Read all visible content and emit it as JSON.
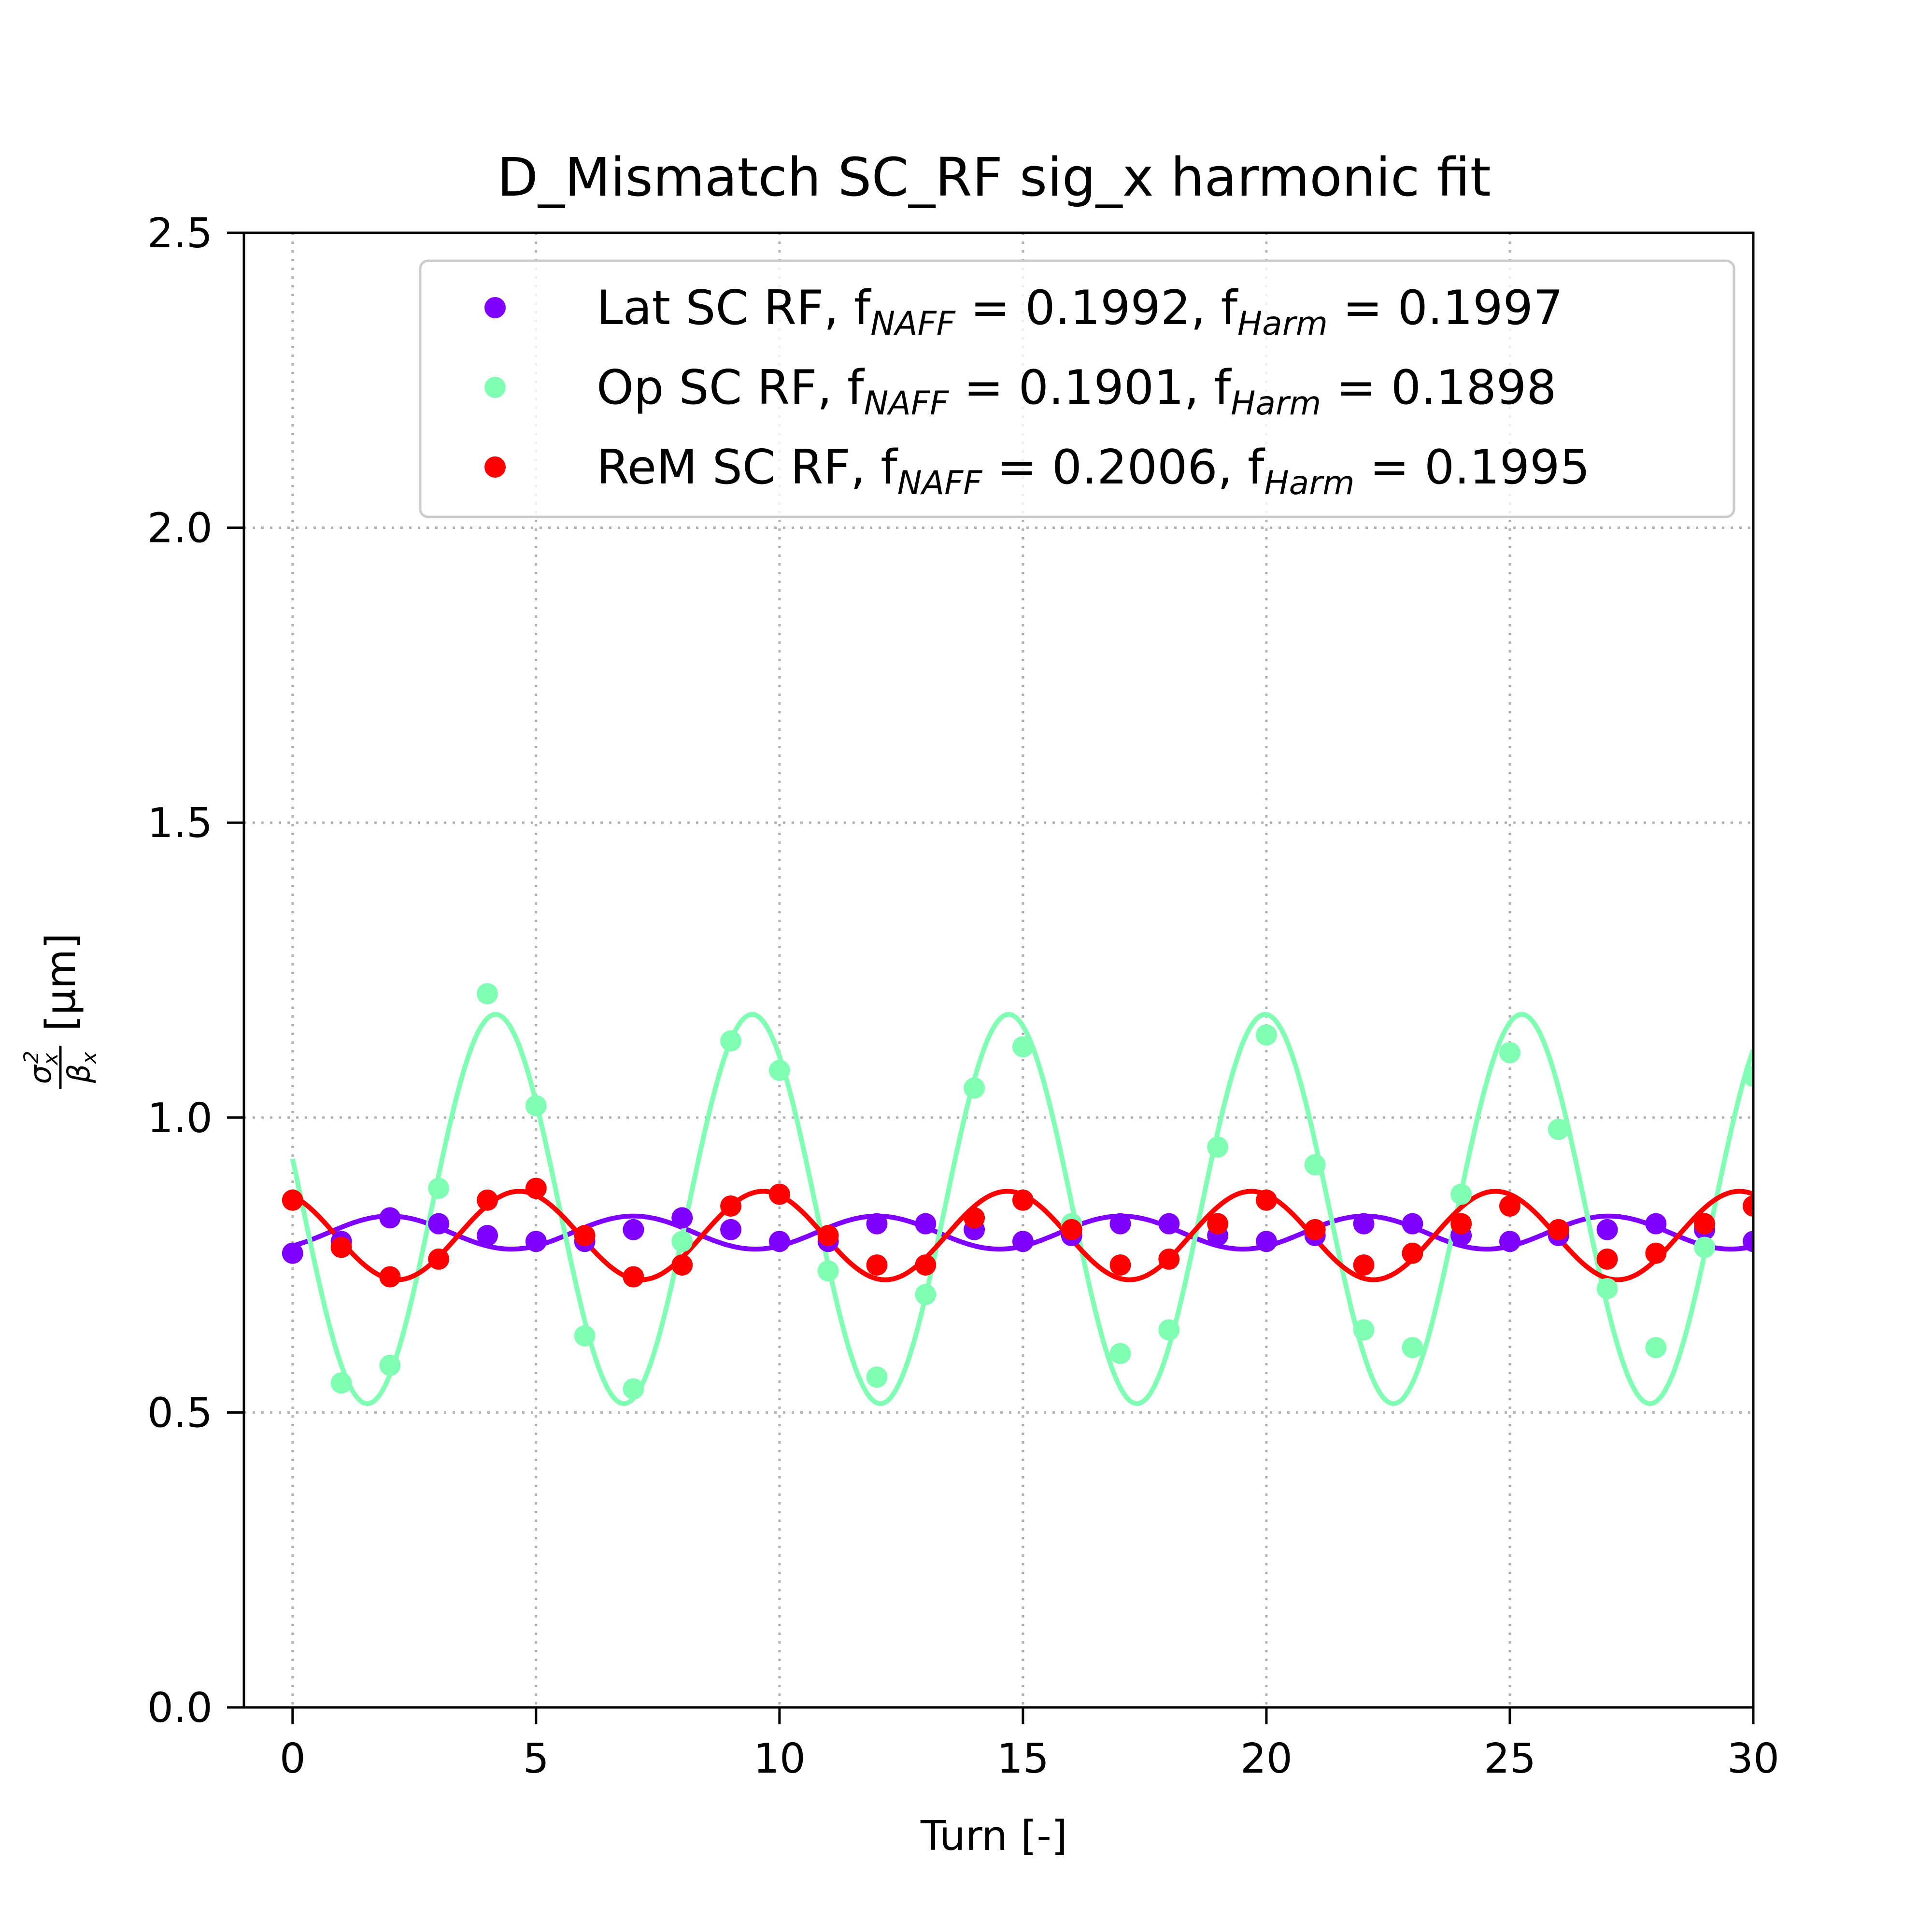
{
  "chart_data": {
    "type": "scatter",
    "title": "D_Mismatch SC_RF sig_x harmonic fit",
    "xlabel": "Turn [-]",
    "ylabel": {
      "numerator_base": "σ",
      "numerator_sub": "x",
      "numerator_sup": "2",
      "denominator_base": "β",
      "denominator_sub": "x",
      "unit": "[μm]"
    },
    "xlim": [
      -1,
      30
    ],
    "ylim": [
      0.0,
      2.5
    ],
    "xticks": [
      0,
      5,
      10,
      15,
      20,
      25,
      30
    ],
    "xtick_labels": [
      "0",
      "5",
      "10",
      "15",
      "20",
      "25",
      "30"
    ],
    "yticks": [
      0.0,
      0.5,
      1.0,
      1.5,
      2.0,
      2.5
    ],
    "ytick_labels": [
      "0.0",
      "0.5",
      "1.0",
      "1.5",
      "2.0",
      "2.5"
    ],
    "grid": true,
    "legend_position": "top-right",
    "series": [
      {
        "name": "Lat SC RF",
        "legend": {
          "prefix": "Lat SC RF, f",
          "sub1": "NAFF",
          "eq1": " = 0.1992, f",
          "sub2": "Harm",
          "eq2": " = 0.1997"
        },
        "color": "#8000ff",
        "x": [
          0,
          1,
          2,
          3,
          4,
          5,
          6,
          7,
          8,
          9,
          10,
          11,
          12,
          13,
          14,
          15,
          16,
          17,
          18,
          19,
          20,
          21,
          22,
          23,
          24,
          25,
          26,
          27,
          28,
          29,
          30
        ],
        "y": [
          0.77,
          0.79,
          0.83,
          0.82,
          0.8,
          0.79,
          0.79,
          0.81,
          0.83,
          0.81,
          0.79,
          0.79,
          0.82,
          0.82,
          0.81,
          0.79,
          0.8,
          0.82,
          0.82,
          0.8,
          0.79,
          0.8,
          0.82,
          0.82,
          0.8,
          0.79,
          0.8,
          0.81,
          0.82,
          0.81,
          0.79
        ],
        "fit": {
          "mean": 0.805,
          "amplitude": 0.028,
          "frequency": 0.1997,
          "phase": -2.5
        }
      },
      {
        "name": "Op SC RF",
        "legend": {
          "prefix": "Op SC RF, f",
          "sub1": "NAFF",
          "eq1": " = 0.1901, f",
          "sub2": "Harm",
          "eq2": " = 0.1898"
        },
        "color": "#80ffb4",
        "x": [
          0,
          1,
          2,
          3,
          4,
          5,
          6,
          7,
          8,
          9,
          10,
          11,
          12,
          13,
          14,
          15,
          16,
          17,
          18,
          19,
          20,
          21,
          22,
          23,
          24,
          25,
          26,
          27,
          28,
          29,
          30
        ],
        "y": [
          0.86,
          0.55,
          0.58,
          0.88,
          1.21,
          1.02,
          0.63,
          0.54,
          0.79,
          1.13,
          1.08,
          0.74,
          0.56,
          0.7,
          1.05,
          1.12,
          0.82,
          0.6,
          0.64,
          0.95,
          1.14,
          0.92,
          0.64,
          0.61,
          0.87,
          1.11,
          0.98,
          0.71,
          0.61,
          0.78,
          1.07
        ],
        "fit": {
          "mean": 0.845,
          "amplitude": 0.33,
          "frequency": 0.1898,
          "phase": 1.31
        }
      },
      {
        "name": "ReM SC RF",
        "legend": {
          "prefix": "ReM SC RF, f",
          "sub1": "NAFF",
          "eq1": " = 0.2006, f",
          "sub2": "Harm",
          "eq2": " = 0.1995"
        },
        "color": "#ff0000",
        "x": [
          0,
          1,
          2,
          3,
          4,
          5,
          6,
          7,
          8,
          9,
          10,
          11,
          12,
          13,
          14,
          15,
          16,
          17,
          18,
          19,
          20,
          21,
          22,
          23,
          24,
          25,
          26,
          27,
          28,
          29,
          30
        ],
        "y": [
          0.86,
          0.78,
          0.73,
          0.76,
          0.86,
          0.88,
          0.8,
          0.73,
          0.75,
          0.85,
          0.87,
          0.8,
          0.75,
          0.75,
          0.83,
          0.86,
          0.81,
          0.75,
          0.76,
          0.82,
          0.86,
          0.81,
          0.75,
          0.77,
          0.82,
          0.85,
          0.81,
          0.76,
          0.77,
          0.82,
          0.85
        ],
        "fit": {
          "mean": 0.8,
          "amplitude": 0.075,
          "frequency": 0.1995,
          "phase": 0.45
        }
      }
    ]
  }
}
